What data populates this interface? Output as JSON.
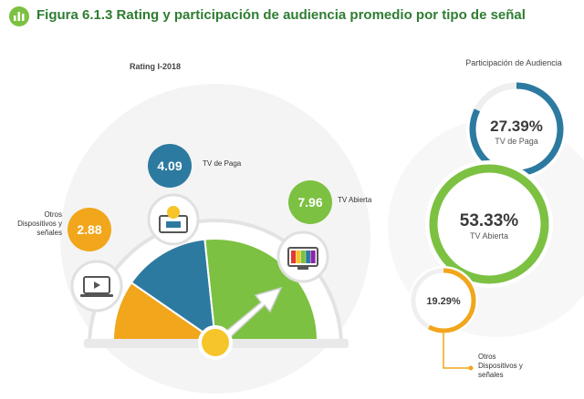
{
  "figure": {
    "title": "Figura 6.1.3 Rating y participación de audiencia promedio por tipo de señal"
  },
  "rating_panel": {
    "title": "Rating I-2018"
  },
  "share_panel": {
    "title": "Participación de Audiencia"
  },
  "colors": {
    "tv_paga": "#2d7aa1",
    "tv_abierta": "#7cc142",
    "otros": "#f1a61b",
    "title": "#2e7d32"
  },
  "chart_data": [
    {
      "type": "gauge",
      "title": "Rating I-2018",
      "categories": [
        "Otros Dispositivos y señales",
        "TV de Paga",
        "TV Abierta"
      ],
      "values": [
        2.88,
        4.09,
        7.96
      ],
      "value_labels": [
        "2.88",
        "4.09",
        "7.96"
      ],
      "icons": [
        "laptop-icon",
        "satellite-tv-icon",
        "tv-test-pattern-icon"
      ]
    },
    {
      "type": "pie",
      "title": "Participación de Audiencia",
      "categories": [
        "TV de Paga",
        "TV Abierta",
        "Otros Dispositivos y señales"
      ],
      "values": [
        27.39,
        53.33,
        19.29
      ],
      "value_labels": [
        "27.39%",
        "53.33%",
        "19.29%"
      ]
    }
  ]
}
